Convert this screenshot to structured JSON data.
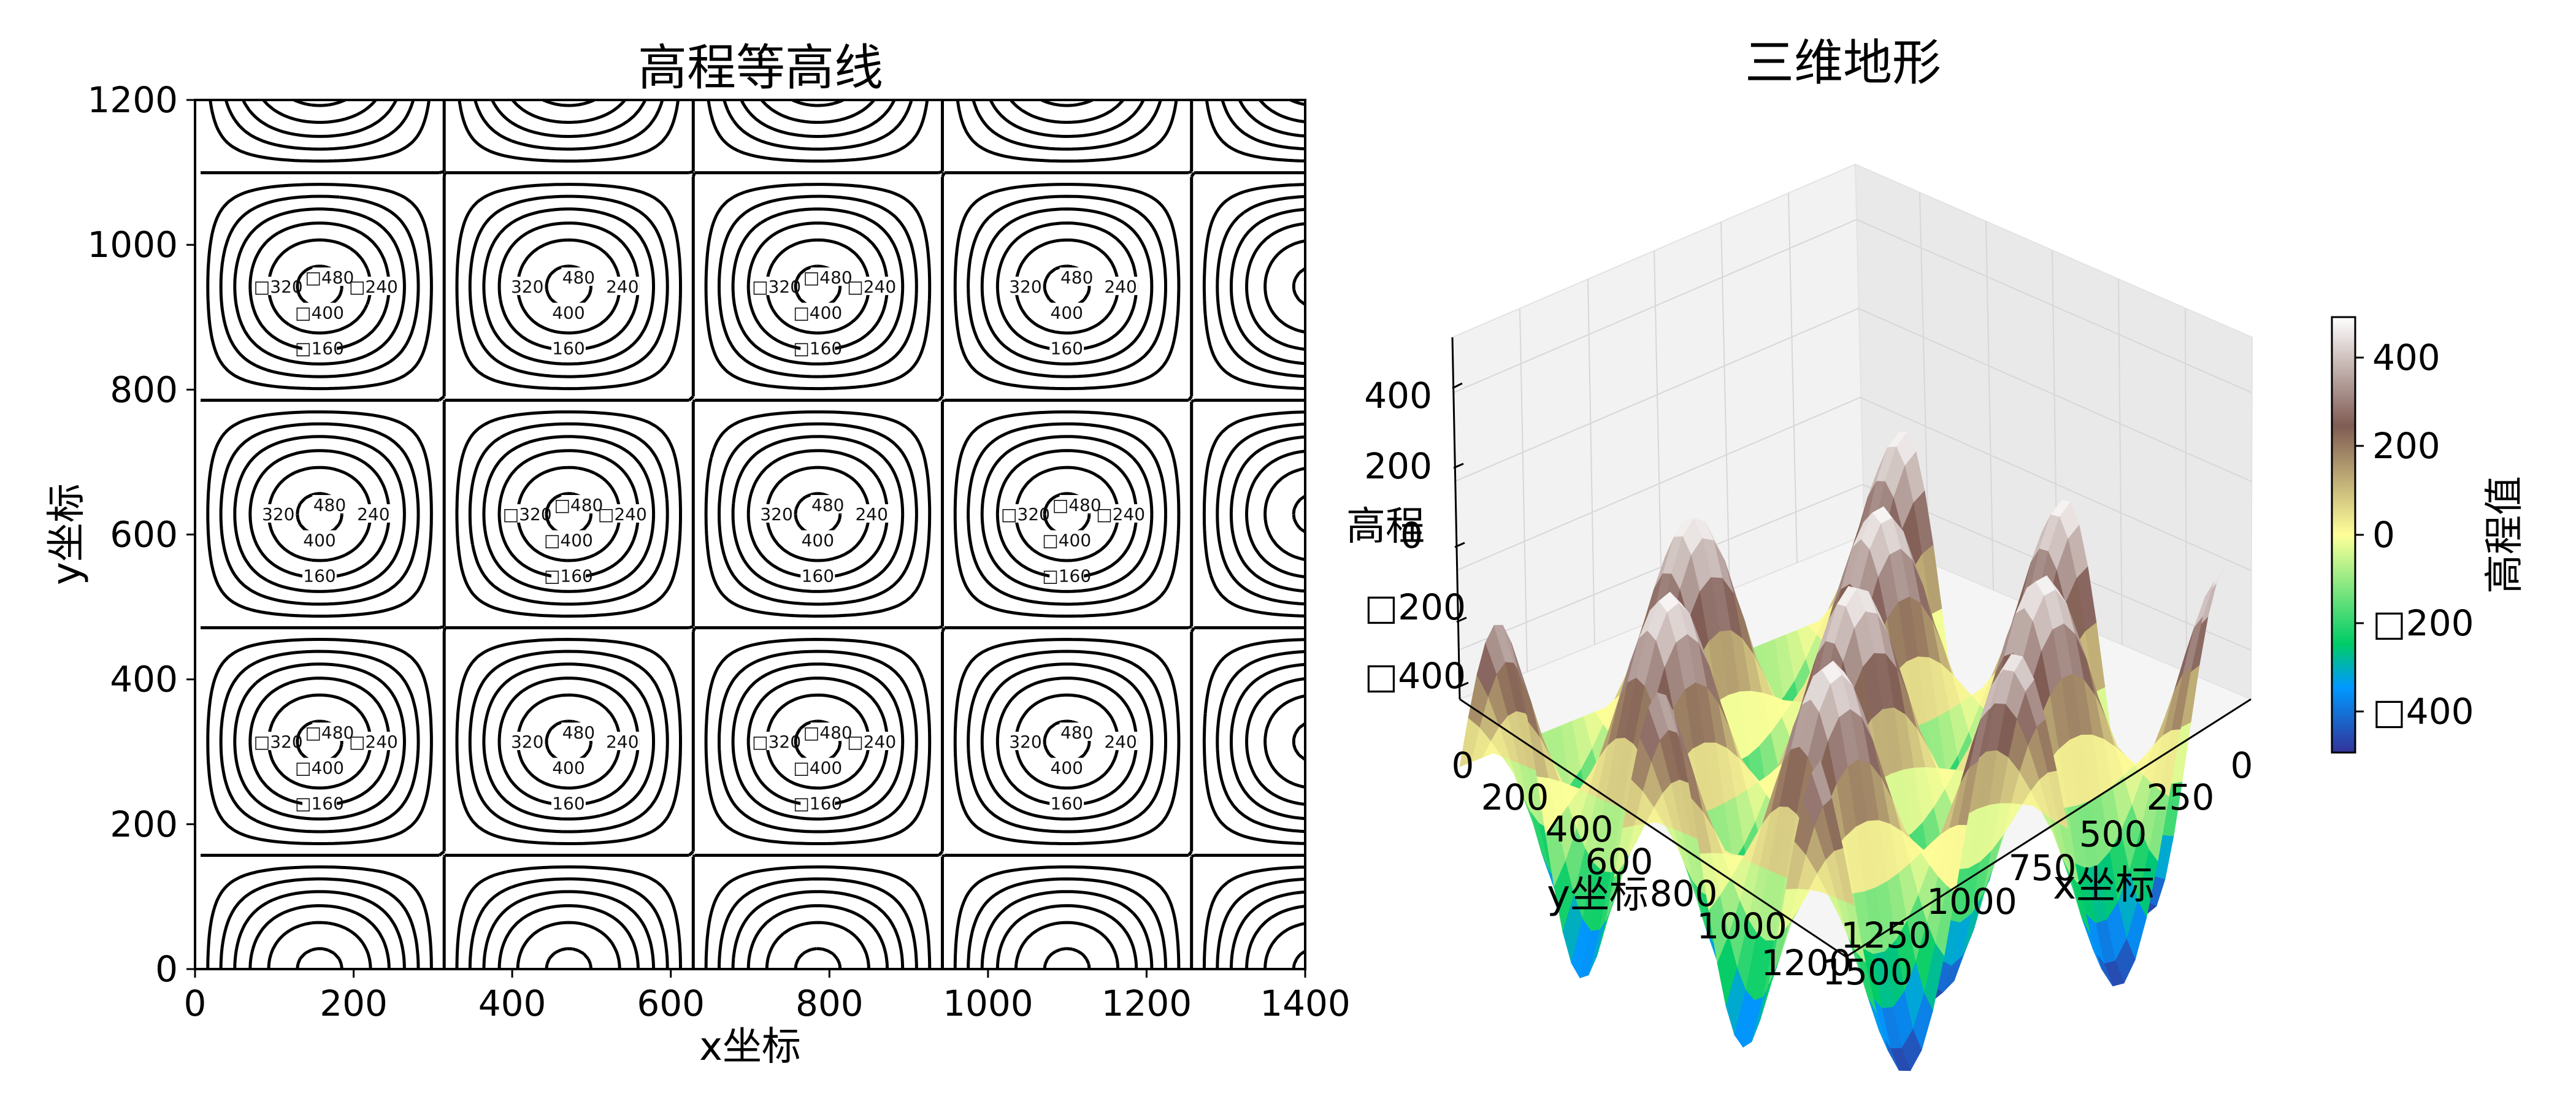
{
  "chart_data": [
    {
      "type": "contour",
      "title": "高程等高线",
      "xlabel": "x坐标",
      "ylabel": "y坐标",
      "xlim": [
        0,
        1400
      ],
      "ylim": [
        0,
        1200
      ],
      "x_ticks": [
        "0",
        "200",
        "400",
        "600",
        "800",
        "1000",
        "1200",
        "1400"
      ],
      "y_ticks": [
        "0",
        "200",
        "400",
        "600",
        "800",
        "1000",
        "1200"
      ],
      "levels": [
        -480,
        -400,
        -320,
        -240,
        -160,
        -80,
        0,
        80,
        160,
        240,
        320,
        400,
        480
      ],
      "line_color": "#000000",
      "negative_style": "dashed",
      "surface": {
        "amplitude": 500,
        "x_period": 628.3,
        "y_period": 628.3,
        "peak": [
          157,
          630
        ],
        "form": "A*sin(x/100)*cos(y/100)"
      }
    },
    {
      "type": "surface3d",
      "title": "三维地形",
      "xlabel": "x坐标",
      "ylabel": "y坐标",
      "zlabel": "高程",
      "x_ticks": [
        "0",
        "250",
        "500",
        "750",
        "1000",
        "1250",
        "1500"
      ],
      "y_ticks": [
        "0",
        "200",
        "400",
        "600",
        "800",
        "1000",
        "1200"
      ],
      "z_ticks": [
        "400",
        "200",
        "0",
        "□200",
        "□400"
      ],
      "colorbar": {
        "label": "高程值",
        "ticks": [
          "400",
          "200",
          "0",
          "□200",
          "□400"
        ],
        "range": [
          -500,
          500
        ]
      },
      "colormap": "terrain"
    }
  ]
}
